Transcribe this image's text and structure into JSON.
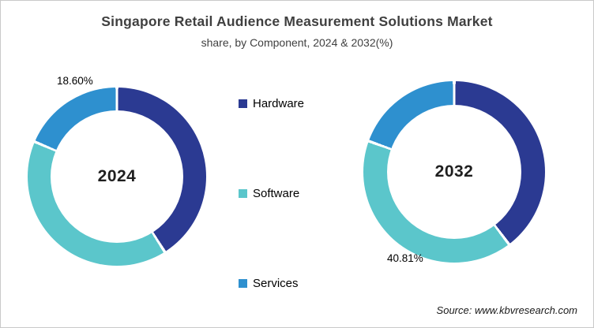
{
  "title": "Singapore Retail Audience Measurement Solutions Market",
  "subtitle": "share, by Component, 2024 & 2032(%)",
  "source_note": "Source: www.kbvresearch.com",
  "legend": {
    "position": "center-column",
    "items": [
      {
        "label": "Hardware",
        "color": "#2b3a92"
      },
      {
        "label": "Software",
        "color": "#5bc6cb"
      },
      {
        "label": "Services",
        "color": "#2e90cf"
      }
    ]
  },
  "chart_data": [
    {
      "type": "pie",
      "subtype": "donut",
      "center_label": "2024",
      "categories": [
        "Hardware",
        "Software",
        "Services"
      ],
      "values": [
        41.0,
        40.4,
        18.6
      ],
      "unit": "%",
      "start_angle_deg": 0,
      "direction": "clockwise",
      "visible_data_labels": [
        {
          "category": "Services",
          "text": "18.60%",
          "position": "top-left"
        }
      ]
    },
    {
      "type": "pie",
      "subtype": "donut",
      "center_label": "2032",
      "categories": [
        "Hardware",
        "Software",
        "Services"
      ],
      "values": [
        39.7,
        40.81,
        19.49
      ],
      "unit": "%",
      "start_angle_deg": 0,
      "direction": "clockwise",
      "visible_data_labels": [
        {
          "category": "Software",
          "text": "40.81%",
          "position": "bottom-left"
        }
      ]
    }
  ]
}
